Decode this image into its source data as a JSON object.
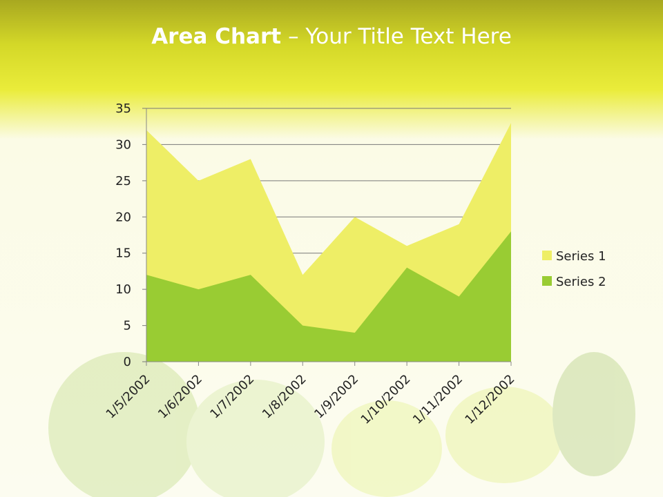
{
  "chart_data": {
    "type": "area",
    "title": {
      "bold": "Area Chart",
      "rest": "– Your Title Text Here"
    },
    "categories": [
      "1/5/2002",
      "1/6/2002",
      "1/7/2002",
      "1/8/2002",
      "1/9/2002",
      "1/10/2002",
      "1/11/2002",
      "1/12/2002"
    ],
    "series": [
      {
        "name": "Series 1",
        "color": "#eeee66",
        "values": [
          32,
          25,
          28,
          12,
          20,
          16,
          19,
          33
        ]
      },
      {
        "name": "Series 2",
        "color": "#99cc33",
        "values": [
          12,
          10,
          12,
          5,
          4,
          13,
          9,
          18
        ]
      }
    ],
    "ylim": [
      0,
      35
    ],
    "yticks": [
      0,
      5,
      10,
      15,
      20,
      25,
      30,
      35
    ],
    "grid": true,
    "legend": "right"
  }
}
